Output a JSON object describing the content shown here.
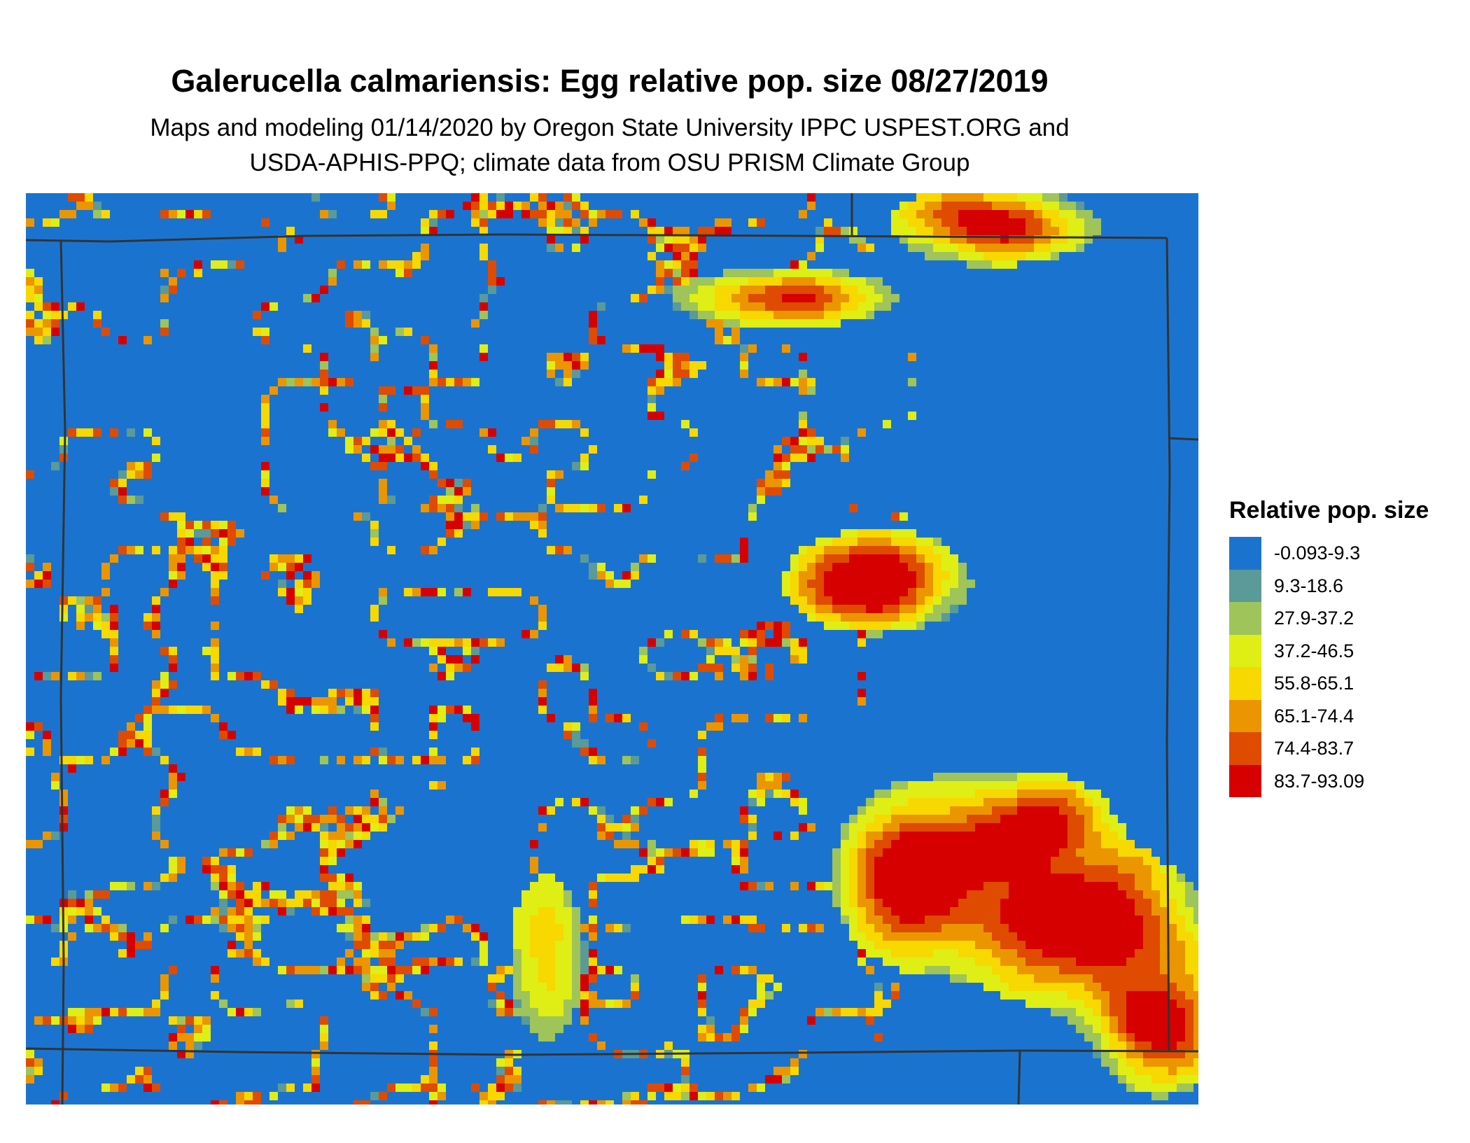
{
  "title": "Galerucella calmariensis: Egg relative pop. size 08/27/2019",
  "subtitle_line1": "Maps and modeling 01/14/2020 by Oregon State University IPPC USPEST.ORG and",
  "subtitle_line2": "USDA-APHIS-PPQ; climate data from OSU PRISM Climate Group",
  "legend": {
    "title": "Relative pop. size",
    "items": [
      {
        "label": "-0.093-9.3",
        "color": "#1a74cf"
      },
      {
        "label": "9.3-18.6",
        "color": "#5a9a98"
      },
      {
        "label": "27.9-37.2",
        "color": "#9ec45a"
      },
      {
        "label": "37.2-46.5",
        "color": "#dfee15"
      },
      {
        "label": "55.8-65.1",
        "color": "#f7d800"
      },
      {
        "label": "65.1-74.4",
        "color": "#eb9500"
      },
      {
        "label": "74.4-83.7",
        "color": "#df4b00"
      },
      {
        "label": "83.7-93.09",
        "color": "#d60000"
      }
    ]
  },
  "map": {
    "background_color": "#1a74cf",
    "border_color": "#333333",
    "raster_seed": 20190827
  }
}
